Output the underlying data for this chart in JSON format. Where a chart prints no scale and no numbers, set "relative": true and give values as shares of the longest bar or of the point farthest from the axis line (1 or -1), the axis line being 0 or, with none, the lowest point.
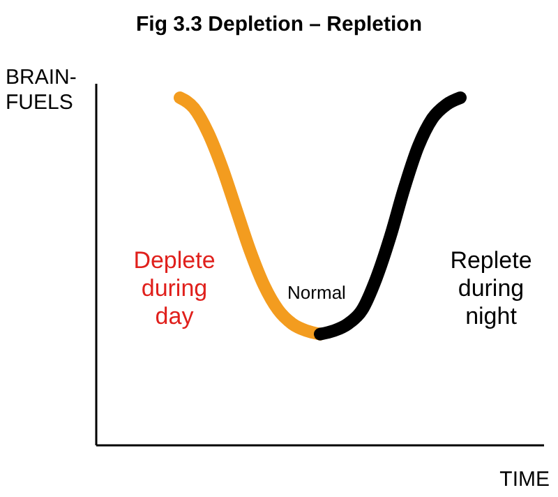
{
  "chart_data": {
    "type": "line",
    "title": "Fig 3.3  Depletion – Repletion",
    "xlabel": "TIME",
    "ylabel": "BRAIN-FUELS",
    "relative": true,
    "marker": "none",
    "line_style": "solid",
    "grid": false,
    "categories": [
      null,
      null,
      null,
      null,
      null,
      null,
      null,
      null,
      null,
      null,
      null,
      null,
      null,
      null,
      null,
      null,
      null,
      null,
      null,
      null,
      null
    ],
    "series": [
      {
        "color": "#f39c1f",
        "values": [
          1,
          0.97,
          0.9,
          0.8,
          0.68,
          0.56,
          0.46,
          0.39,
          0.35,
          0.33,
          0.32,
          null,
          null,
          null,
          null,
          null,
          null,
          null,
          null,
          null,
          null
        ]
      },
      {
        "color": "#000000",
        "values": [
          null,
          null,
          null,
          null,
          null,
          null,
          null,
          null,
          null,
          null,
          0.32,
          0.33,
          0.35,
          0.39,
          0.48,
          0.6,
          0.74,
          0.86,
          0.94,
          0.98,
          1
        ]
      }
    ],
    "annotations": [
      "Deplete\nduring\nday",
      "Normal",
      "Replete\nduring\nnight"
    ]
  }
}
